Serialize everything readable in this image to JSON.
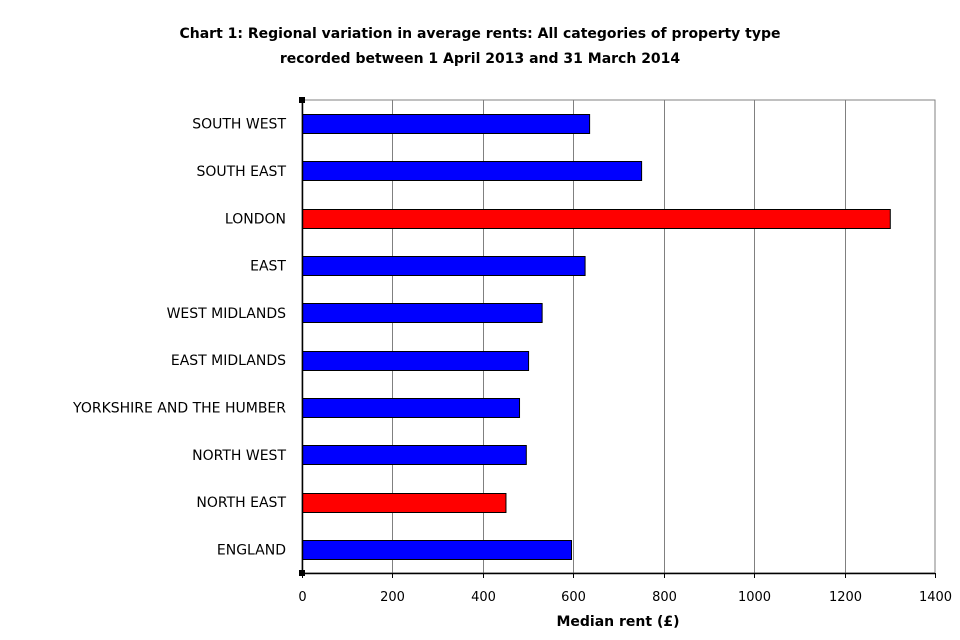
{
  "chart_data": {
    "type": "bar",
    "orientation": "horizontal",
    "title_lines": [
      "Chart 1: Regional variation in average rents: All categories of property type",
      "recorded between 1 April 2013 and 31 March 2014"
    ],
    "xlabel": "Median rent (£)",
    "ylabel": "",
    "xlim": [
      0,
      1400
    ],
    "xticks": [
      "0",
      "200",
      "400",
      "600",
      "800",
      "1000",
      "1200",
      "1400"
    ],
    "grid": true,
    "categories": [
      "SOUTH WEST",
      "SOUTH EAST",
      "LONDON",
      "EAST",
      "WEST MIDLANDS",
      "EAST MIDLANDS",
      "YORKSHIRE AND THE HUMBER",
      "NORTH WEST",
      "NORTH EAST",
      "ENGLAND"
    ],
    "values": [
      635,
      750,
      1300,
      625,
      530,
      500,
      480,
      495,
      450,
      595
    ],
    "bar_colors": [
      "#0000ff",
      "#0000ff",
      "#ff0000",
      "#0000ff",
      "#0000ff",
      "#0000ff",
      "#0000ff",
      "#0000ff",
      "#ff0000",
      "#0000ff"
    ]
  }
}
